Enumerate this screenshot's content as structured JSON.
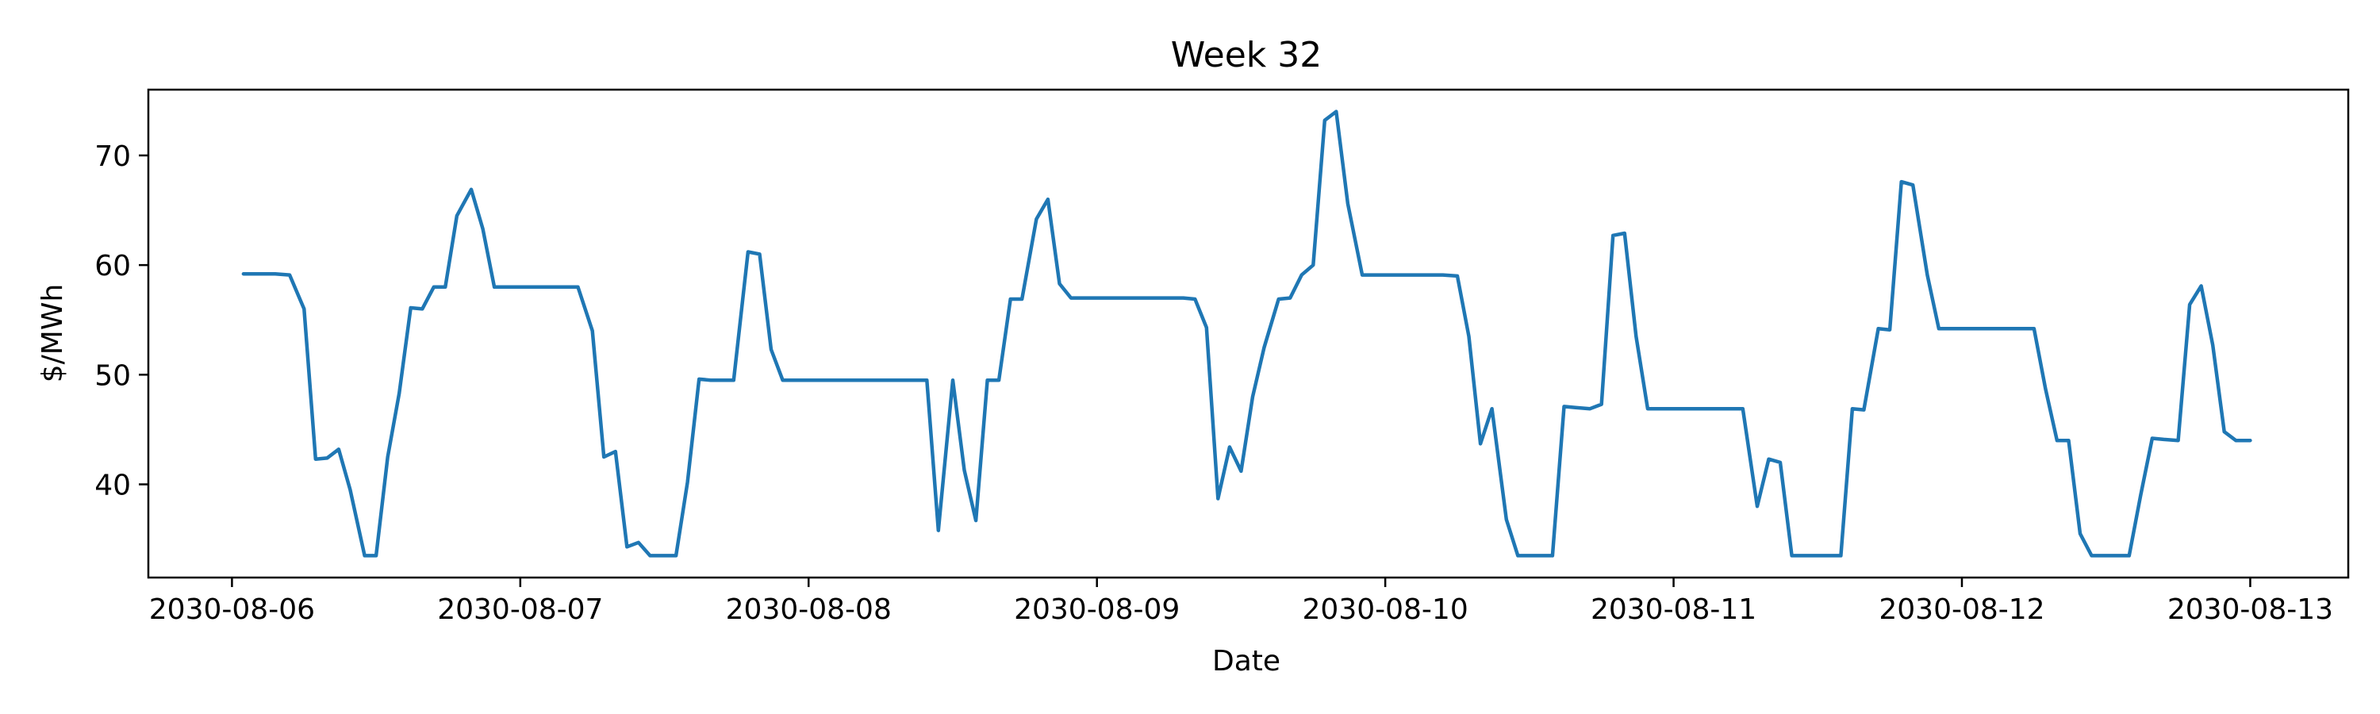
{
  "chart_data": {
    "type": "line",
    "title": "Week 32",
    "xlabel": "Date",
    "ylabel": "$/MWh",
    "x_unit": "days since 2030-08-06",
    "xlim": [
      -0.29,
      7.34
    ],
    "ylim": [
      31.5,
      76.0
    ],
    "x_ticks": [
      {
        "value": 0,
        "label": "2030-08-06"
      },
      {
        "value": 1,
        "label": "2030-08-07"
      },
      {
        "value": 2,
        "label": "2030-08-08"
      },
      {
        "value": 3,
        "label": "2030-08-09"
      },
      {
        "value": 4,
        "label": "2030-08-10"
      },
      {
        "value": 5,
        "label": "2030-08-11"
      },
      {
        "value": 6,
        "label": "2030-08-12"
      },
      {
        "value": 7,
        "label": "2030-08-13"
      }
    ],
    "y_ticks": [
      40,
      50,
      60,
      70
    ],
    "grid": false,
    "series": [
      {
        "name": "",
        "color": "#1f77b4",
        "points": [
          [
            0.04,
            59.2
          ],
          [
            0.09,
            59.2
          ],
          [
            0.15,
            59.2
          ],
          [
            0.2,
            59.1
          ],
          [
            0.25,
            56.0
          ],
          [
            0.29,
            42.3
          ],
          [
            0.33,
            42.4
          ],
          [
            0.37,
            43.2
          ],
          [
            0.41,
            39.5
          ],
          [
            0.46,
            33.5
          ],
          [
            0.5,
            33.5
          ],
          [
            0.54,
            42.5
          ],
          [
            0.58,
            48.3
          ],
          [
            0.62,
            56.1
          ],
          [
            0.66,
            56.0
          ],
          [
            0.7,
            58.0
          ],
          [
            0.74,
            58.0
          ],
          [
            0.78,
            64.5
          ],
          [
            0.83,
            66.9
          ],
          [
            0.87,
            63.3
          ],
          [
            0.91,
            58.0
          ],
          [
            0.95,
            58.0
          ],
          [
            1.0,
            58.0
          ],
          [
            1.05,
            58.0
          ],
          [
            1.1,
            58.0
          ],
          [
            1.16,
            58.0
          ],
          [
            1.2,
            58.0
          ],
          [
            1.25,
            54.0
          ],
          [
            1.29,
            42.5
          ],
          [
            1.33,
            43.0
          ],
          [
            1.37,
            34.3
          ],
          [
            1.41,
            34.7
          ],
          [
            1.45,
            33.5
          ],
          [
            1.54,
            33.5
          ],
          [
            1.58,
            40.2
          ],
          [
            1.62,
            49.6
          ],
          [
            1.66,
            49.5
          ],
          [
            1.74,
            49.5
          ],
          [
            1.79,
            61.2
          ],
          [
            1.83,
            61.0
          ],
          [
            1.87,
            52.3
          ],
          [
            1.91,
            49.5
          ],
          [
            2.0,
            49.5
          ],
          [
            2.1,
            49.5
          ],
          [
            2.2,
            49.5
          ],
          [
            2.3,
            49.5
          ],
          [
            2.41,
            49.5
          ],
          [
            2.45,
            35.8
          ],
          [
            2.5,
            49.5
          ],
          [
            2.54,
            41.3
          ],
          [
            2.58,
            36.7
          ],
          [
            2.62,
            49.5
          ],
          [
            2.66,
            49.5
          ],
          [
            2.7,
            56.9
          ],
          [
            2.74,
            56.9
          ],
          [
            2.79,
            64.2
          ],
          [
            2.83,
            66.0
          ],
          [
            2.87,
            58.3
          ],
          [
            2.91,
            57.0
          ],
          [
            3.0,
            57.0
          ],
          [
            3.1,
            57.0
          ],
          [
            3.2,
            57.0
          ],
          [
            3.3,
            57.0
          ],
          [
            3.34,
            56.9
          ],
          [
            3.38,
            54.3
          ],
          [
            3.42,
            38.7
          ],
          [
            3.46,
            43.4
          ],
          [
            3.5,
            41.2
          ],
          [
            3.54,
            48.0
          ],
          [
            3.58,
            52.5
          ],
          [
            3.63,
            56.9
          ],
          [
            3.67,
            57.0
          ],
          [
            3.71,
            59.1
          ],
          [
            3.75,
            60.0
          ],
          [
            3.79,
            73.2
          ],
          [
            3.83,
            74.0
          ],
          [
            3.87,
            65.6
          ],
          [
            3.92,
            59.1
          ],
          [
            4.0,
            59.1
          ],
          [
            4.1,
            59.1
          ],
          [
            4.2,
            59.1
          ],
          [
            4.25,
            59.0
          ],
          [
            4.29,
            53.5
          ],
          [
            4.33,
            43.7
          ],
          [
            4.37,
            46.9
          ],
          [
            4.42,
            36.8
          ],
          [
            4.46,
            33.5
          ],
          [
            4.58,
            33.5
          ],
          [
            4.62,
            47.1
          ],
          [
            4.66,
            47.0
          ],
          [
            4.71,
            46.9
          ],
          [
            4.75,
            47.3
          ],
          [
            4.79,
            62.7
          ],
          [
            4.83,
            62.9
          ],
          [
            4.87,
            53.5
          ],
          [
            4.91,
            46.9
          ],
          [
            5.0,
            46.9
          ],
          [
            5.1,
            46.9
          ],
          [
            5.2,
            46.9
          ],
          [
            5.24,
            46.9
          ],
          [
            5.29,
            38.0
          ],
          [
            5.33,
            42.3
          ],
          [
            5.37,
            42.0
          ],
          [
            5.41,
            33.5
          ],
          [
            5.58,
            33.5
          ],
          [
            5.62,
            46.9
          ],
          [
            5.66,
            46.8
          ],
          [
            5.71,
            54.2
          ],
          [
            5.75,
            54.1
          ],
          [
            5.79,
            67.6
          ],
          [
            5.83,
            67.3
          ],
          [
            5.88,
            59.1
          ],
          [
            5.92,
            54.2
          ],
          [
            6.0,
            54.2
          ],
          [
            6.1,
            54.2
          ],
          [
            6.2,
            54.2
          ],
          [
            6.25,
            54.2
          ],
          [
            6.29,
            48.7
          ],
          [
            6.33,
            44.0
          ],
          [
            6.37,
            44.0
          ],
          [
            6.41,
            35.5
          ],
          [
            6.45,
            33.5
          ],
          [
            6.58,
            33.5
          ],
          [
            6.62,
            39.0
          ],
          [
            6.66,
            44.2
          ],
          [
            6.7,
            44.1
          ],
          [
            6.75,
            44.0
          ],
          [
            6.79,
            56.4
          ],
          [
            6.83,
            58.1
          ],
          [
            6.87,
            52.7
          ],
          [
            6.91,
            44.8
          ],
          [
            6.95,
            44.0
          ],
          [
            7.0,
            44.0
          ]
        ]
      }
    ]
  }
}
